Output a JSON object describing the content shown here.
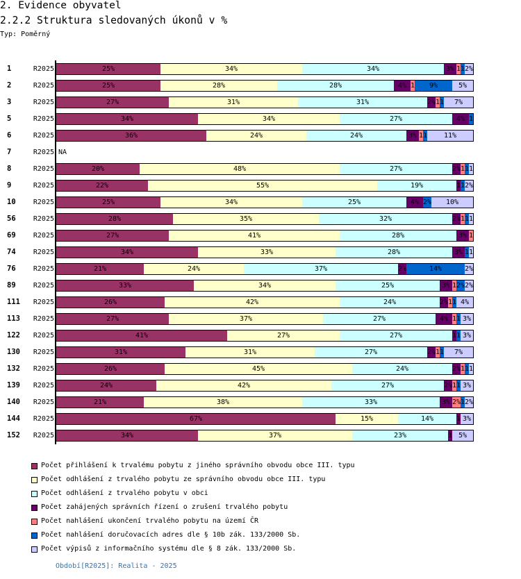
{
  "header": {
    "section": "2. Evidence obyvatel",
    "title": "2.2.2 Struktura sledovaných úkonů v %",
    "type_label": "Typ: Poměrný"
  },
  "chart_data": {
    "type": "bar",
    "orientation": "horizontal",
    "stacked": true,
    "normalized_percent": true,
    "title": "2.2.2 Struktura sledovaných úkonů v %",
    "xlabel": "",
    "ylabel": "",
    "xlim": [
      0,
      100
    ],
    "grid": false,
    "legend_position": "bottom",
    "value_suffix": "%",
    "na_label": "NA",
    "categories": [
      {
        "id": "1",
        "period": "R2025"
      },
      {
        "id": "2",
        "period": "R2025"
      },
      {
        "id": "3",
        "period": "R2025"
      },
      {
        "id": "5",
        "period": "R2025"
      },
      {
        "id": "6",
        "period": "R2025"
      },
      {
        "id": "7",
        "period": "R2025"
      },
      {
        "id": "8",
        "period": "R2025"
      },
      {
        "id": "9",
        "period": "R2025"
      },
      {
        "id": "10",
        "period": "R2025"
      },
      {
        "id": "56",
        "period": "R2025"
      },
      {
        "id": "69",
        "period": "R2025"
      },
      {
        "id": "74",
        "period": "R2025"
      },
      {
        "id": "76",
        "period": "R2025"
      },
      {
        "id": "89",
        "period": "R2025"
      },
      {
        "id": "111",
        "period": "R2025"
      },
      {
        "id": "113",
        "period": "R2025"
      },
      {
        "id": "122",
        "period": "R2025"
      },
      {
        "id": "130",
        "period": "R2025"
      },
      {
        "id": "132",
        "period": "R2025"
      },
      {
        "id": "139",
        "period": "R2025"
      },
      {
        "id": "140",
        "period": "R2025"
      },
      {
        "id": "144",
        "period": "R2025"
      },
      {
        "id": "152",
        "period": "R2025"
      }
    ],
    "series": [
      {
        "name": "Počet přihlášení k trvalému pobytu z jiného správního obvodu obce III. typu",
        "color": "#993366",
        "values": [
          25,
          25,
          27,
          34,
          36,
          null,
          20,
          22,
          25,
          28,
          27,
          34,
          21,
          33,
          26,
          27,
          41,
          31,
          26,
          24,
          21,
          67,
          34
        ]
      },
      {
        "name": "Počet odhlášení z trvalého pobytu ze správního obvodu obce III. typu",
        "color": "#FFFFCC",
        "values": [
          34,
          28,
          31,
          34,
          24,
          null,
          48,
          55,
          34,
          35,
          41,
          33,
          24,
          34,
          42,
          37,
          27,
          31,
          45,
          42,
          38,
          15,
          37
        ]
      },
      {
        "name": "Počet odhlášení z trvalého pobytu v obci",
        "color": "#CCFFFF",
        "values": [
          34,
          28,
          31,
          27,
          24,
          null,
          27,
          19,
          25,
          32,
          28,
          28,
          37,
          25,
          24,
          27,
          27,
          27,
          24,
          27,
          33,
          14,
          23
        ]
      },
      {
        "name": "Počet zahájených správních řízení o zrušení trvalého pobytu",
        "color": "#660066",
        "values": [
          3,
          4,
          2,
          4,
          3,
          null,
          2,
          1,
          4,
          2,
          3,
          3,
          2,
          3,
          2,
          4,
          1,
          2,
          2,
          2,
          3,
          1,
          1
        ]
      },
      {
        "name": "Počet nahlášení ukončení trvalého pobytu na území ČR",
        "color": "#FF8080",
        "values": [
          1,
          1,
          1,
          0,
          1,
          null,
          1,
          0,
          0,
          1,
          1,
          0,
          0,
          1,
          1,
          1,
          0,
          1,
          1,
          1,
          2,
          0,
          0
        ]
      },
      {
        "name": "Počet nahlášení doručovacích adres dle § 10b zák. 133/2000 Sb.",
        "color": "#0066CC",
        "values": [
          1,
          9,
          1,
          1,
          1,
          null,
          1,
          1,
          2,
          1,
          0,
          1,
          14,
          2,
          1,
          1,
          1,
          1,
          1,
          1,
          1,
          0,
          0
        ]
      },
      {
        "name": "Počet výpisů z informačního systému dle § 8 zák. 133/2000 Sb.",
        "color": "#CCCCFF",
        "values": [
          2,
          5,
          7,
          0,
          11,
          null,
          1,
          2,
          10,
          1,
          0,
          1,
          2,
          2,
          4,
          3,
          3,
          7,
          1,
          3,
          2,
          3,
          5
        ]
      }
    ]
  },
  "footer": {
    "period_note": "Období[R2025]: Realita - 2025"
  }
}
